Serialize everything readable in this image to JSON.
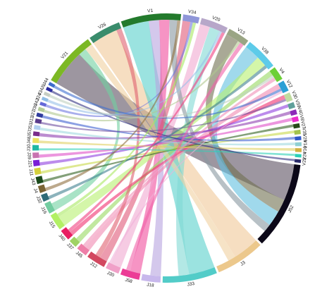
{
  "chart_data": {
    "type": "chord",
    "title": "",
    "sectors": [
      {
        "name": "V1",
        "value": 11,
        "color": "#237a2c"
      },
      {
        "name": "V34",
        "value": 3,
        "color": "#8f96d8"
      },
      {
        "name": "V20",
        "value": 5,
        "color": "#b7a7c9"
      },
      {
        "name": "V13",
        "value": 4,
        "color": "#9aa584"
      },
      {
        "name": "V38",
        "value": 6,
        "color": "#5dcbe9"
      },
      {
        "name": "V4",
        "value": 2.5,
        "color": "#6cd036"
      },
      {
        "name": "V12",
        "value": 2,
        "color": "#2b9fd5"
      },
      {
        "name": "V30",
        "value": 1.5,
        "color": "#c0dca0"
      },
      {
        "name": "V39",
        "value": 1,
        "color": "#5f9f9a"
      },
      {
        "name": "V40",
        "value": 0.9,
        "color": "#8b29b8"
      },
      {
        "name": "V8",
        "value": 0.9,
        "color": "#ec2dcb"
      },
      {
        "name": "V27",
        "value": 0.8,
        "color": "#274a18"
      },
      {
        "name": "V35",
        "value": 0.8,
        "color": "#a3c34c"
      },
      {
        "name": "V29",
        "value": 0.7,
        "color": "#2f58c8"
      },
      {
        "name": "V14",
        "value": 0.7,
        "color": "#8fd0d3"
      },
      {
        "name": "V10",
        "value": 0.7,
        "color": "#d2b040"
      },
      {
        "name": "V24",
        "value": 0.6,
        "color": "#2cd0b8"
      },
      {
        "name": "V22",
        "value": 0.6,
        "color": "#2a2a6a"
      },
      {
        "name": "J52",
        "value": 16,
        "color": "#0c0818"
      },
      {
        "name": "J3",
        "value": 9,
        "color": "#ecc88c"
      },
      {
        "name": "J33",
        "value": 10,
        "color": "#52ccc8"
      },
      {
        "name": "J18",
        "value": 3.5,
        "color": "#c8b8ec"
      },
      {
        "name": "J58",
        "value": 3.5,
        "color": "#ec3c96"
      },
      {
        "name": "J30",
        "value": 2.5,
        "color": "#f0a0c8"
      },
      {
        "name": "J12",
        "value": 3.5,
        "color": "#d24860"
      },
      {
        "name": "J45",
        "value": 2,
        "color": "#ee7ea8"
      },
      {
        "name": "J37",
        "value": 1.5,
        "color": "#a0d264"
      },
      {
        "name": "J40",
        "value": 2,
        "color": "#e81e62"
      },
      {
        "name": "J15",
        "value": 3,
        "color": "#b2f064"
      },
      {
        "name": "J16",
        "value": 2,
        "color": "#72cca0"
      },
      {
        "name": "J32",
        "value": 1.3,
        "color": "#2f6b78"
      },
      {
        "name": "J4",
        "value": 1.3,
        "color": "#7a6434"
      },
      {
        "name": "J43",
        "value": 1.3,
        "color": "#1b4a1c"
      },
      {
        "name": "J11",
        "value": 1.2,
        "color": "#d4d03c"
      },
      {
        "name": "J21",
        "value": 1.1,
        "color": "#7a1ed6"
      },
      {
        "name": "J39",
        "value": 1,
        "color": "#c874b0"
      },
      {
        "name": "J10",
        "value": 1,
        "color": "#1fb8a4"
      },
      {
        "name": "J48",
        "value": 0.9,
        "color": "#ece060"
      },
      {
        "name": "J57",
        "value": 0.8,
        "color": "#7a2c8a"
      },
      {
        "name": "J53",
        "value": 0.8,
        "color": "#b2d0f0"
      },
      {
        "name": "J13",
        "value": 0.8,
        "color": "#5a3c8c"
      },
      {
        "name": "J27",
        "value": 0.7,
        "color": "#2e3a9c"
      },
      {
        "name": "J36",
        "value": 0.7,
        "color": "#b4cc98"
      },
      {
        "name": "J42",
        "value": 0.6,
        "color": "#6468d8"
      },
      {
        "name": "J24",
        "value": 0.6,
        "color": "#8fbce4"
      },
      {
        "name": "J34",
        "value": 0.6,
        "color": "#c6cec4"
      },
      {
        "name": "J9",
        "value": 0.6,
        "color": "#2a2aa0"
      },
      {
        "name": "J44",
        "value": 0.6,
        "color": "#3c6ccc"
      },
      {
        "name": "V21",
        "value": 10,
        "color": "#7cb824"
      },
      {
        "name": "V26",
        "value": 6,
        "color": "#3a8c6c"
      }
    ],
    "links": [
      {
        "source": "V21",
        "target": "J52",
        "value": 7,
        "color": "#5c5060"
      },
      {
        "source": "V26",
        "target": "J3",
        "value": 5,
        "color": "#f0c898"
      },
      {
        "source": "V1",
        "target": "J33",
        "value": 5,
        "color": "#58d0cc"
      },
      {
        "source": "V1",
        "target": "J18",
        "value": 2,
        "color": "#b8a4e0"
      },
      {
        "source": "V1",
        "target": "J58",
        "value": 2,
        "color": "#f04c9c"
      },
      {
        "source": "V34",
        "target": "J12",
        "value": 1.5,
        "color": "#e05878"
      },
      {
        "source": "V20",
        "target": "J30",
        "value": 2,
        "color": "#f0a8d0"
      },
      {
        "source": "V20",
        "target": "J33",
        "value": 2,
        "color": "#80d8d4"
      },
      {
        "source": "V13",
        "target": "J52",
        "value": 2.5,
        "color": "#707050"
      },
      {
        "source": "V38",
        "target": "J52",
        "value": 3,
        "color": "#60c0e0"
      },
      {
        "source": "V38",
        "target": "J15",
        "value": 2,
        "color": "#b8f070"
      },
      {
        "source": "V4",
        "target": "J37",
        "value": 1,
        "color": "#98d860"
      },
      {
        "source": "V12",
        "target": "J45",
        "value": 1,
        "color": "#f088b0"
      },
      {
        "source": "V30",
        "target": "J40",
        "value": 0.8,
        "color": "#f03070"
      },
      {
        "source": "V21",
        "target": "J16",
        "value": 1.5,
        "color": "#70d0a0"
      },
      {
        "source": "V21",
        "target": "J3",
        "value": 1.5,
        "color": "#f0d0a0"
      },
      {
        "source": "V26",
        "target": "J12",
        "value": 1,
        "color": "#e06070"
      },
      {
        "source": "V1",
        "target": "J52",
        "value": 1.5,
        "color": "#8898a0"
      },
      {
        "source": "V39",
        "target": "J21",
        "value": 0.6,
        "color": "#9040e0"
      },
      {
        "source": "V40",
        "target": "J57",
        "value": 0.6,
        "color": "#9040b0"
      },
      {
        "source": "V8",
        "target": "J39",
        "value": 0.6,
        "color": "#e050c8"
      },
      {
        "source": "V27",
        "target": "J43",
        "value": 0.5,
        "color": "#306020"
      },
      {
        "source": "V35",
        "target": "J11",
        "value": 0.5,
        "color": "#c8d848"
      },
      {
        "source": "V29",
        "target": "J27",
        "value": 0.5,
        "color": "#4060d0"
      },
      {
        "source": "V14",
        "target": "J53",
        "value": 0.5,
        "color": "#a0d8e0"
      },
      {
        "source": "V10",
        "target": "J48",
        "value": 0.5,
        "color": "#e0d060"
      },
      {
        "source": "V24",
        "target": "J10",
        "value": 0.4,
        "color": "#30d0b8"
      },
      {
        "source": "V22",
        "target": "J9",
        "value": 0.4,
        "color": "#303080"
      },
      {
        "source": "V13",
        "target": "J36",
        "value": 0.5,
        "color": "#b0c890"
      },
      {
        "source": "V34",
        "target": "J42",
        "value": 0.5,
        "color": "#7078e0"
      },
      {
        "source": "V20",
        "target": "J24",
        "value": 0.5,
        "color": "#98c0e8"
      },
      {
        "source": "V12",
        "target": "J44",
        "value": 0.5,
        "color": "#4070d0"
      },
      {
        "source": "V4",
        "target": "J34",
        "value": 0.5,
        "color": "#c0d0c0"
      },
      {
        "source": "V30",
        "target": "J13",
        "value": 0.4,
        "color": "#7050a0"
      },
      {
        "source": "V38",
        "target": "J32",
        "value": 0.6,
        "color": "#408090"
      },
      {
        "source": "V1",
        "target": "J4",
        "value": 0.6,
        "color": "#907040"
      },
      {
        "source": "V20",
        "target": "J40",
        "value": 0.6,
        "color": "#f04080"
      },
      {
        "source": "V4",
        "target": "J45",
        "value": 0.6,
        "color": "#f090b8"
      },
      {
        "source": "V34",
        "target": "J15",
        "value": 0.6,
        "color": "#a8e860"
      },
      {
        "source": "V13",
        "target": "J58",
        "value": 0.8,
        "color": "#f060a8"
      },
      {
        "source": "V12",
        "target": "J30",
        "value": 0.4,
        "color": "#f0b0d8"
      }
    ]
  }
}
